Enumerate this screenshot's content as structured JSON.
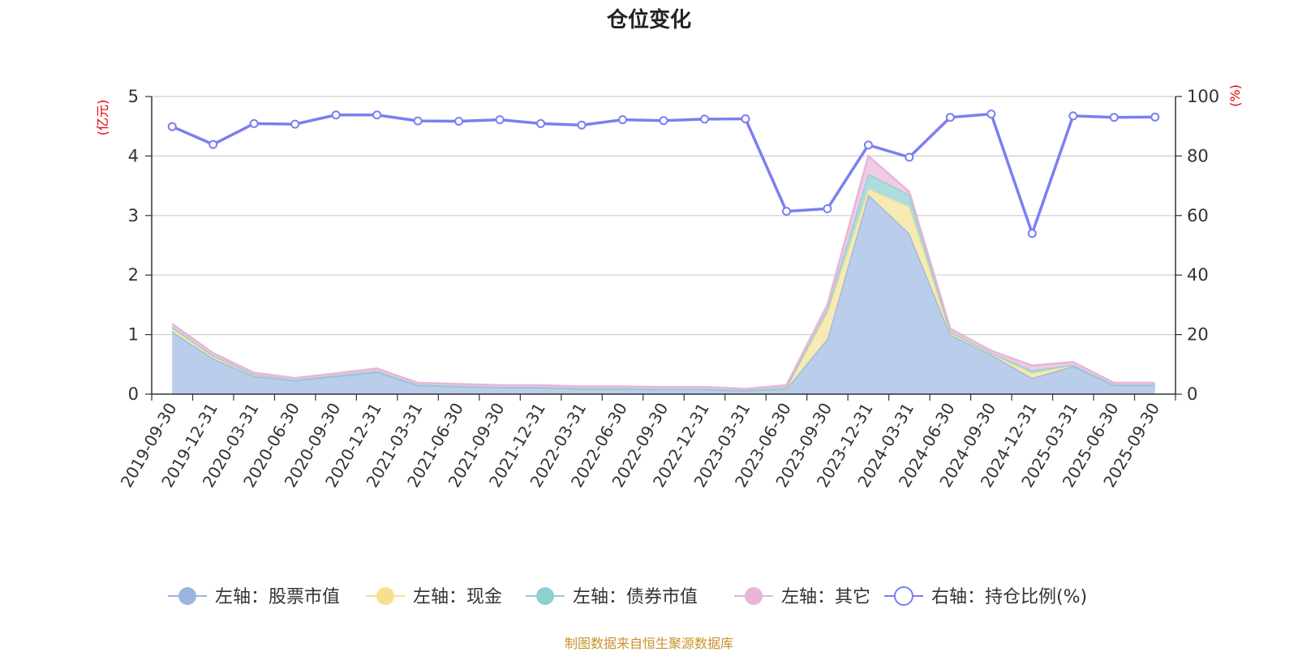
{
  "chart_data": {
    "type": "area",
    "title": "仓位变化",
    "left_unit": "(亿元)",
    "right_unit": "(%)",
    "source_text": "制图数据来自恒生聚源数据库",
    "categories": [
      "2019-09-30",
      "2019-12-31",
      "2020-03-31",
      "2020-06-30",
      "2020-09-30",
      "2020-12-31",
      "2021-03-31",
      "2021-06-30",
      "2021-09-30",
      "2021-12-31",
      "2022-03-31",
      "2022-06-30",
      "2022-09-30",
      "2022-12-31",
      "2023-03-31",
      "2023-06-30",
      "2023-09-30",
      "2023-12-31",
      "2024-03-31",
      "2024-06-30",
      "2024-09-30",
      "2024-12-31",
      "2025-03-31",
      "2025-06-30",
      "2025-09-30"
    ],
    "left_axis": {
      "min": 0,
      "max": 5,
      "ticks": [
        0,
        1,
        2,
        3,
        4,
        5
      ]
    },
    "right_axis": {
      "min": 0,
      "max": 100,
      "ticks": [
        0,
        20,
        40,
        60,
        80,
        100
      ]
    },
    "series": [
      {
        "name": "左轴：股票市值",
        "axis": "left",
        "stack": true,
        "color": "#9ab6e0",
        "fill": "#b6cbea",
        "values": [
          1.05,
          0.6,
          0.3,
          0.23,
          0.3,
          0.37,
          0.15,
          0.13,
          0.11,
          0.11,
          0.09,
          0.09,
          0.08,
          0.08,
          0.06,
          0.09,
          0.93,
          3.35,
          2.7,
          1.0,
          0.66,
          0.27,
          0.47,
          0.15,
          0.15
        ]
      },
      {
        "name": "左轴：现金",
        "axis": "left",
        "stack": true,
        "color": "#f5e08c",
        "fill": "#f8e9b0",
        "values": [
          0.05,
          0.03,
          0.02,
          0.01,
          0.02,
          0.02,
          0.01,
          0.01,
          0.01,
          0.01,
          0.01,
          0.01,
          0.01,
          0.01,
          0.01,
          0.02,
          0.45,
          0.1,
          0.45,
          0.03,
          0.02,
          0.08,
          0.02,
          0.01,
          0.01
        ]
      },
      {
        "name": "左轴：债券市值",
        "axis": "left",
        "stack": true,
        "color": "#8ed0d2",
        "fill": "#a8dbdc",
        "values": [
          0.03,
          0.02,
          0.01,
          0.0,
          0.0,
          0.0,
          0.0,
          0.0,
          0.0,
          0.0,
          0.0,
          0.0,
          0.0,
          0.0,
          0.0,
          0.01,
          0.05,
          0.25,
          0.2,
          0.02,
          0.01,
          0.05,
          0.0,
          0.0,
          0.0
        ]
      },
      {
        "name": "左轴：其它",
        "axis": "left",
        "stack": true,
        "color": "#e8b4d8",
        "fill": "#efc8e4",
        "values": [
          0.05,
          0.04,
          0.03,
          0.03,
          0.03,
          0.04,
          0.03,
          0.03,
          0.03,
          0.03,
          0.03,
          0.03,
          0.03,
          0.03,
          0.02,
          0.03,
          0.07,
          0.3,
          0.05,
          0.05,
          0.04,
          0.08,
          0.05,
          0.03,
          0.03
        ]
      },
      {
        "name": "右轴：持仓比例(%)",
        "axis": "right",
        "stack": false,
        "color": "#7b7ff0",
        "values": [
          89.9,
          83.9,
          90.9,
          90.7,
          93.8,
          93.8,
          91.8,
          91.7,
          92.2,
          90.9,
          90.4,
          92.2,
          91.9,
          92.4,
          92.5,
          61.4,
          62.3,
          83.7,
          79.6,
          93.0,
          94.1,
          54.0,
          93.5,
          93.0,
          93.1
        ]
      }
    ]
  }
}
